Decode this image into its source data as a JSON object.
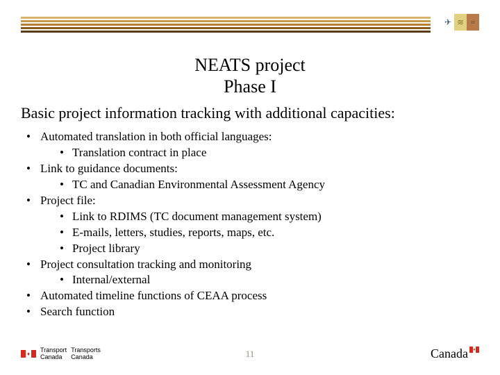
{
  "header": {
    "stripe_colors": [
      "#d9b46a",
      "#c79a4a",
      "#b5802f",
      "#8a5a1f",
      "#5a3a14"
    ],
    "icon_boxes": [
      {
        "bg": "#ffffff",
        "glyph": "✈",
        "glyph_color": "#3a5a7a"
      },
      {
        "bg": "#e0d080",
        "glyph": "≋",
        "glyph_color": "#8a7a30"
      },
      {
        "bg": "#b97a4a",
        "glyph": "≡",
        "glyph_color": "#6a4a2a"
      }
    ]
  },
  "title": {
    "line1": "NEATS project",
    "line2": "Phase I"
  },
  "subtitle": "Basic project information tracking with additional capacities:",
  "bullets": [
    {
      "text": "Automated translation in both official languages:",
      "children": [
        {
          "text": "Translation contract in place"
        }
      ]
    },
    {
      "text": "Link to guidance documents:",
      "children": [
        {
          "text": "TC and Canadian Environmental Assessment Agency"
        }
      ]
    },
    {
      "text": "Project file:",
      "children": [
        {
          "text": "Link to RDIMS (TC document management system)"
        },
        {
          "text": "E-mails, letters, studies, reports, maps, etc."
        },
        {
          "text": "Project library"
        }
      ]
    },
    {
      "text": "Project consultation tracking and monitoring",
      "children": [
        {
          "text": "Internal/external"
        }
      ]
    },
    {
      "text": "Automated timeline functions of CEAA process"
    },
    {
      "text": "Search function"
    }
  ],
  "footer": {
    "dept_en1": "Transport",
    "dept_en2": "Canada",
    "dept_fr1": "Transports",
    "dept_fr2": "Canada",
    "page_number": "11",
    "wordmark": "Canada"
  }
}
